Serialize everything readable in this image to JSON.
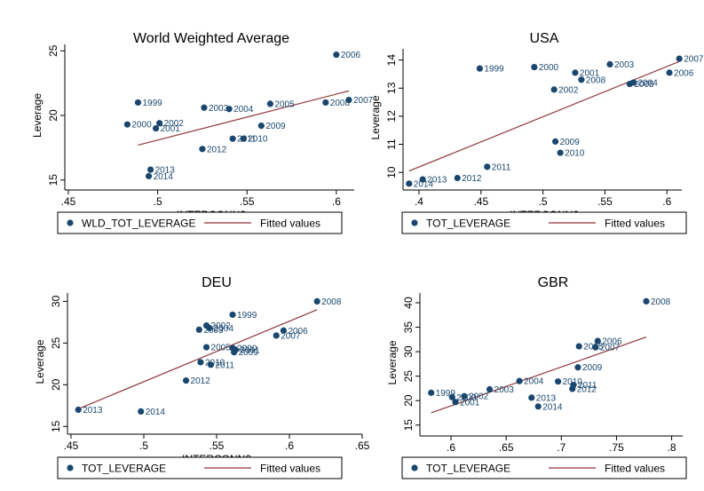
{
  "figure": {
    "colors": {
      "point": "#1a476f",
      "fit": "#90353b",
      "axis": "#000000",
      "text": "#000000"
    }
  },
  "chart_data": [
    {
      "type": "scatter",
      "title": "World Weighted Average",
      "xlabel": "INTERCONN2",
      "ylabel": "Leverage",
      "xlim": [
        0.45,
        0.61
      ],
      "ylim": [
        14.5,
        25.5
      ],
      "xticks": [
        0.45,
        0.5,
        0.55,
        0.6
      ],
      "xtick_labels": [
        ".45",
        ".5",
        ".55",
        ".6"
      ],
      "yticks": [
        15,
        20,
        25
      ],
      "ytick_labels": [
        "15",
        "20",
        "25"
      ],
      "grid": false,
      "legend": {
        "position": "bottom",
        "series_label": "WLD_TOT_LEVERAGE",
        "fit_label": "Fitted values"
      },
      "series": [
        {
          "name": "WLD_TOT_LEVERAGE",
          "points": [
            {
              "label": "1999",
              "x": 0.489,
              "y": 21.0
            },
            {
              "label": "2000",
              "x": 0.483,
              "y": 19.3
            },
            {
              "label": "2001",
              "x": 0.499,
              "y": 19.0
            },
            {
              "label": "2002",
              "x": 0.501,
              "y": 19.4
            },
            {
              "label": "2003",
              "x": 0.526,
              "y": 20.6
            },
            {
              "label": "2004",
              "x": 0.54,
              "y": 20.5
            },
            {
              "label": "2005",
              "x": 0.563,
              "y": 20.9
            },
            {
              "label": "2006",
              "x": 0.6,
              "y": 24.7
            },
            {
              "label": "2007",
              "x": 0.607,
              "y": 21.2
            },
            {
              "label": "2008",
              "x": 0.594,
              "y": 21.0
            },
            {
              "label": "2009",
              "x": 0.558,
              "y": 19.2
            },
            {
              "label": "2010",
              "x": 0.548,
              "y": 18.2
            },
            {
              "label": "2011",
              "x": 0.542,
              "y": 18.2
            },
            {
              "label": "2012",
              "x": 0.525,
              "y": 17.4
            },
            {
              "label": "2013",
              "x": 0.496,
              "y": 15.8
            },
            {
              "label": "2014",
              "x": 0.495,
              "y": 15.3
            }
          ]
        },
        {
          "name": "Fitted values",
          "line": [
            [
              0.489,
              17.7
            ],
            [
              0.607,
              21.9
            ]
          ]
        }
      ]
    },
    {
      "type": "scatter",
      "title": "USA",
      "xlabel": "INTERCONN2",
      "ylabel": "Leverage",
      "xlim": [
        0.39,
        0.612
      ],
      "ylim": [
        9.5,
        14.4
      ],
      "xticks": [
        0.4,
        0.45,
        0.5,
        0.55,
        0.6
      ],
      "xtick_labels": [
        ".4",
        ".45",
        ".5",
        ".55",
        ".6"
      ],
      "yticks": [
        10,
        11,
        12,
        13,
        14
      ],
      "ytick_labels": [
        "10",
        "11",
        "12",
        "13",
        "14"
      ],
      "grid": false,
      "legend": {
        "position": "bottom",
        "series_label": "TOT_LEVERAGE",
        "fit_label": "Fitted values"
      },
      "series": [
        {
          "name": "TOT_LEVERAGE",
          "points": [
            {
              "label": "1999",
              "x": 0.449,
              "y": 13.7
            },
            {
              "label": "2000",
              "x": 0.493,
              "y": 13.75
            },
            {
              "label": "2001",
              "x": 0.526,
              "y": 13.55
            },
            {
              "label": "2002",
              "x": 0.509,
              "y": 12.95
            },
            {
              "label": "2003",
              "x": 0.554,
              "y": 13.85
            },
            {
              "label": "2004",
              "x": 0.573,
              "y": 13.2
            },
            {
              "label": "2005",
              "x": 0.57,
              "y": 13.15
            },
            {
              "label": "2006",
              "x": 0.602,
              "y": 13.55
            },
            {
              "label": "2007",
              "x": 0.61,
              "y": 14.05
            },
            {
              "label": "2008",
              "x": 0.531,
              "y": 13.3
            },
            {
              "label": "2009",
              "x": 0.51,
              "y": 11.1
            },
            {
              "label": "2010",
              "x": 0.514,
              "y": 10.7
            },
            {
              "label": "2011",
              "x": 0.455,
              "y": 10.2
            },
            {
              "label": "2012",
              "x": 0.431,
              "y": 9.8
            },
            {
              "label": "2013",
              "x": 0.403,
              "y": 9.75
            },
            {
              "label": "2014",
              "x": 0.392,
              "y": 9.6
            }
          ]
        },
        {
          "name": "Fitted values",
          "line": [
            [
              0.392,
              10.05
            ],
            [
              0.61,
              13.95
            ]
          ]
        }
      ]
    },
    {
      "type": "scatter",
      "title": "DEU",
      "xlabel": "INTERCONN2",
      "ylabel": "Leverage",
      "xlim": [
        0.45,
        0.65
      ],
      "ylim": [
        14.5,
        31
      ],
      "xticks": [
        0.45,
        0.5,
        0.55,
        0.6,
        0.65
      ],
      "xtick_labels": [
        ".45",
        ".5",
        ".55",
        ".6",
        ".65"
      ],
      "yticks": [
        15,
        20,
        25,
        30
      ],
      "ytick_labels": [
        "15",
        "20",
        "25",
        "30"
      ],
      "grid": false,
      "legend": {
        "position": "bottom",
        "series_label": "TOT_LEVERAGE",
        "fit_label": "Fitted values"
      },
      "series": [
        {
          "name": "TOT_LEVERAGE",
          "points": [
            {
              "label": "1999",
              "x": 0.561,
              "y": 28.4
            },
            {
              "label": "2000",
              "x": 0.561,
              "y": 24.4
            },
            {
              "label": "2001",
              "x": 0.563,
              "y": 24.2
            },
            {
              "label": "2002",
              "x": 0.543,
              "y": 27.1
            },
            {
              "label": "2003",
              "x": 0.538,
              "y": 26.6
            },
            {
              "label": "2004",
              "x": 0.545,
              "y": 26.8
            },
            {
              "label": "2005",
              "x": 0.543,
              "y": 24.5
            },
            {
              "label": "2006",
              "x": 0.596,
              "y": 26.5
            },
            {
              "label": "2007",
              "x": 0.591,
              "y": 25.9
            },
            {
              "label": "2008",
              "x": 0.619,
              "y": 30.0
            },
            {
              "label": "2009",
              "x": 0.562,
              "y": 23.9
            },
            {
              "label": "2010",
              "x": 0.539,
              "y": 22.7
            },
            {
              "label": "2011",
              "x": 0.546,
              "y": 22.4
            },
            {
              "label": "2012",
              "x": 0.529,
              "y": 20.5
            },
            {
              "label": "2013",
              "x": 0.455,
              "y": 17.0
            },
            {
              "label": "2014",
              "x": 0.498,
              "y": 16.8
            }
          ]
        },
        {
          "name": "Fitted values",
          "line": [
            [
              0.455,
              17.1
            ],
            [
              0.619,
              29.0
            ]
          ]
        }
      ]
    },
    {
      "type": "scatter",
      "title": "GBR",
      "xlabel": "INTERCONN2",
      "ylabel": "Leverage",
      "xlim": [
        0.575,
        0.81
      ],
      "ylim": [
        13.5,
        42
      ],
      "xticks": [
        0.6,
        0.65,
        0.7,
        0.75,
        0.8
      ],
      "xtick_labels": [
        ".6",
        ".65",
        ".7",
        ".75",
        ".8"
      ],
      "yticks": [
        15,
        20,
        25,
        30,
        35,
        40
      ],
      "ytick_labels": [
        "15",
        "20",
        "25",
        "30",
        "35",
        "40"
      ],
      "grid": false,
      "legend": {
        "position": "bottom",
        "series_label": "TOT_LEVERAGE",
        "fit_label": "Fitted values"
      },
      "series": [
        {
          "name": "TOT_LEVERAGE",
          "points": [
            {
              "label": "1999",
              "x": 0.582,
              "y": 21.6
            },
            {
              "label": "2000",
              "x": 0.601,
              "y": 20.7
            },
            {
              "label": "2001",
              "x": 0.604,
              "y": 19.7
            },
            {
              "label": "2002",
              "x": 0.612,
              "y": 20.9
            },
            {
              "label": "2003",
              "x": 0.635,
              "y": 22.3
            },
            {
              "label": "2004",
              "x": 0.662,
              "y": 24.0
            },
            {
              "label": "2005",
              "x": 0.716,
              "y": 31.1
            },
            {
              "label": "2006",
              "x": 0.733,
              "y": 32.2
            },
            {
              "label": "2007",
              "x": 0.731,
              "y": 30.9
            },
            {
              "label": "2008",
              "x": 0.777,
              "y": 40.3
            },
            {
              "label": "2009",
              "x": 0.715,
              "y": 26.8
            },
            {
              "label": "2010",
              "x": 0.697,
              "y": 23.9
            },
            {
              "label": "2011",
              "x": 0.711,
              "y": 23.2
            },
            {
              "label": "2012",
              "x": 0.71,
              "y": 22.4
            },
            {
              "label": "2013",
              "x": 0.673,
              "y": 20.6
            },
            {
              "label": "2014",
              "x": 0.679,
              "y": 18.8
            }
          ]
        },
        {
          "name": "Fitted values",
          "line": [
            [
              0.582,
              17.5
            ],
            [
              0.777,
              33.0
            ]
          ]
        }
      ]
    }
  ]
}
